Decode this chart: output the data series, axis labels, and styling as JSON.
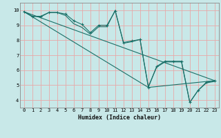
{
  "title": "",
  "xlabel": "Humidex (Indice chaleur)",
  "bg_color": "#c8e8e8",
  "grid_color": "#e8a8a8",
  "line_color": "#1a7068",
  "xlim": [
    -0.5,
    23.5
  ],
  "ylim": [
    3.5,
    10.5
  ],
  "xticks": [
    0,
    1,
    2,
    3,
    4,
    5,
    6,
    7,
    8,
    9,
    10,
    11,
    12,
    13,
    14,
    15,
    16,
    17,
    18,
    19,
    20,
    21,
    22,
    23
  ],
  "yticks": [
    4,
    5,
    6,
    7,
    8,
    9,
    10
  ],
  "line_main": [
    [
      0,
      9.9
    ],
    [
      1,
      9.6
    ],
    [
      2,
      9.6
    ],
    [
      3,
      9.85
    ],
    [
      4,
      9.85
    ],
    [
      5,
      9.75
    ],
    [
      6,
      9.3
    ],
    [
      7,
      9.05
    ],
    [
      8,
      8.5
    ],
    [
      9,
      9.0
    ],
    [
      10,
      9.0
    ],
    [
      11,
      9.95
    ],
    [
      12,
      7.85
    ],
    [
      13,
      7.95
    ],
    [
      14,
      8.05
    ],
    [
      15,
      4.85
    ],
    [
      16,
      6.25
    ],
    [
      17,
      6.6
    ],
    [
      18,
      6.6
    ],
    [
      19,
      6.6
    ],
    [
      20,
      3.85
    ],
    [
      21,
      4.65
    ],
    [
      22,
      5.2
    ],
    [
      23,
      5.3
    ]
  ],
  "line_secondary": [
    [
      0,
      9.9
    ],
    [
      1,
      9.6
    ],
    [
      2,
      9.55
    ],
    [
      3,
      9.85
    ],
    [
      4,
      9.85
    ],
    [
      5,
      9.65
    ],
    [
      6,
      9.1
    ],
    [
      7,
      8.85
    ],
    [
      8,
      8.4
    ],
    [
      9,
      8.9
    ],
    [
      10,
      8.9
    ],
    [
      11,
      10.0
    ],
    [
      12,
      7.8
    ],
    [
      13,
      7.9
    ],
    [
      14,
      8.05
    ],
    [
      15,
      4.9
    ],
    [
      16,
      6.2
    ],
    [
      17,
      6.55
    ],
    [
      18,
      6.55
    ],
    [
      19,
      6.55
    ],
    [
      20,
      3.85
    ],
    [
      21,
      4.65
    ],
    [
      22,
      5.15
    ],
    [
      23,
      5.25
    ]
  ],
  "line_diag1": [
    [
      0,
      9.9
    ],
    [
      23,
      5.3
    ]
  ],
  "line_diag2": [
    [
      0,
      9.9
    ],
    [
      15,
      4.85
    ],
    [
      23,
      5.3
    ]
  ]
}
